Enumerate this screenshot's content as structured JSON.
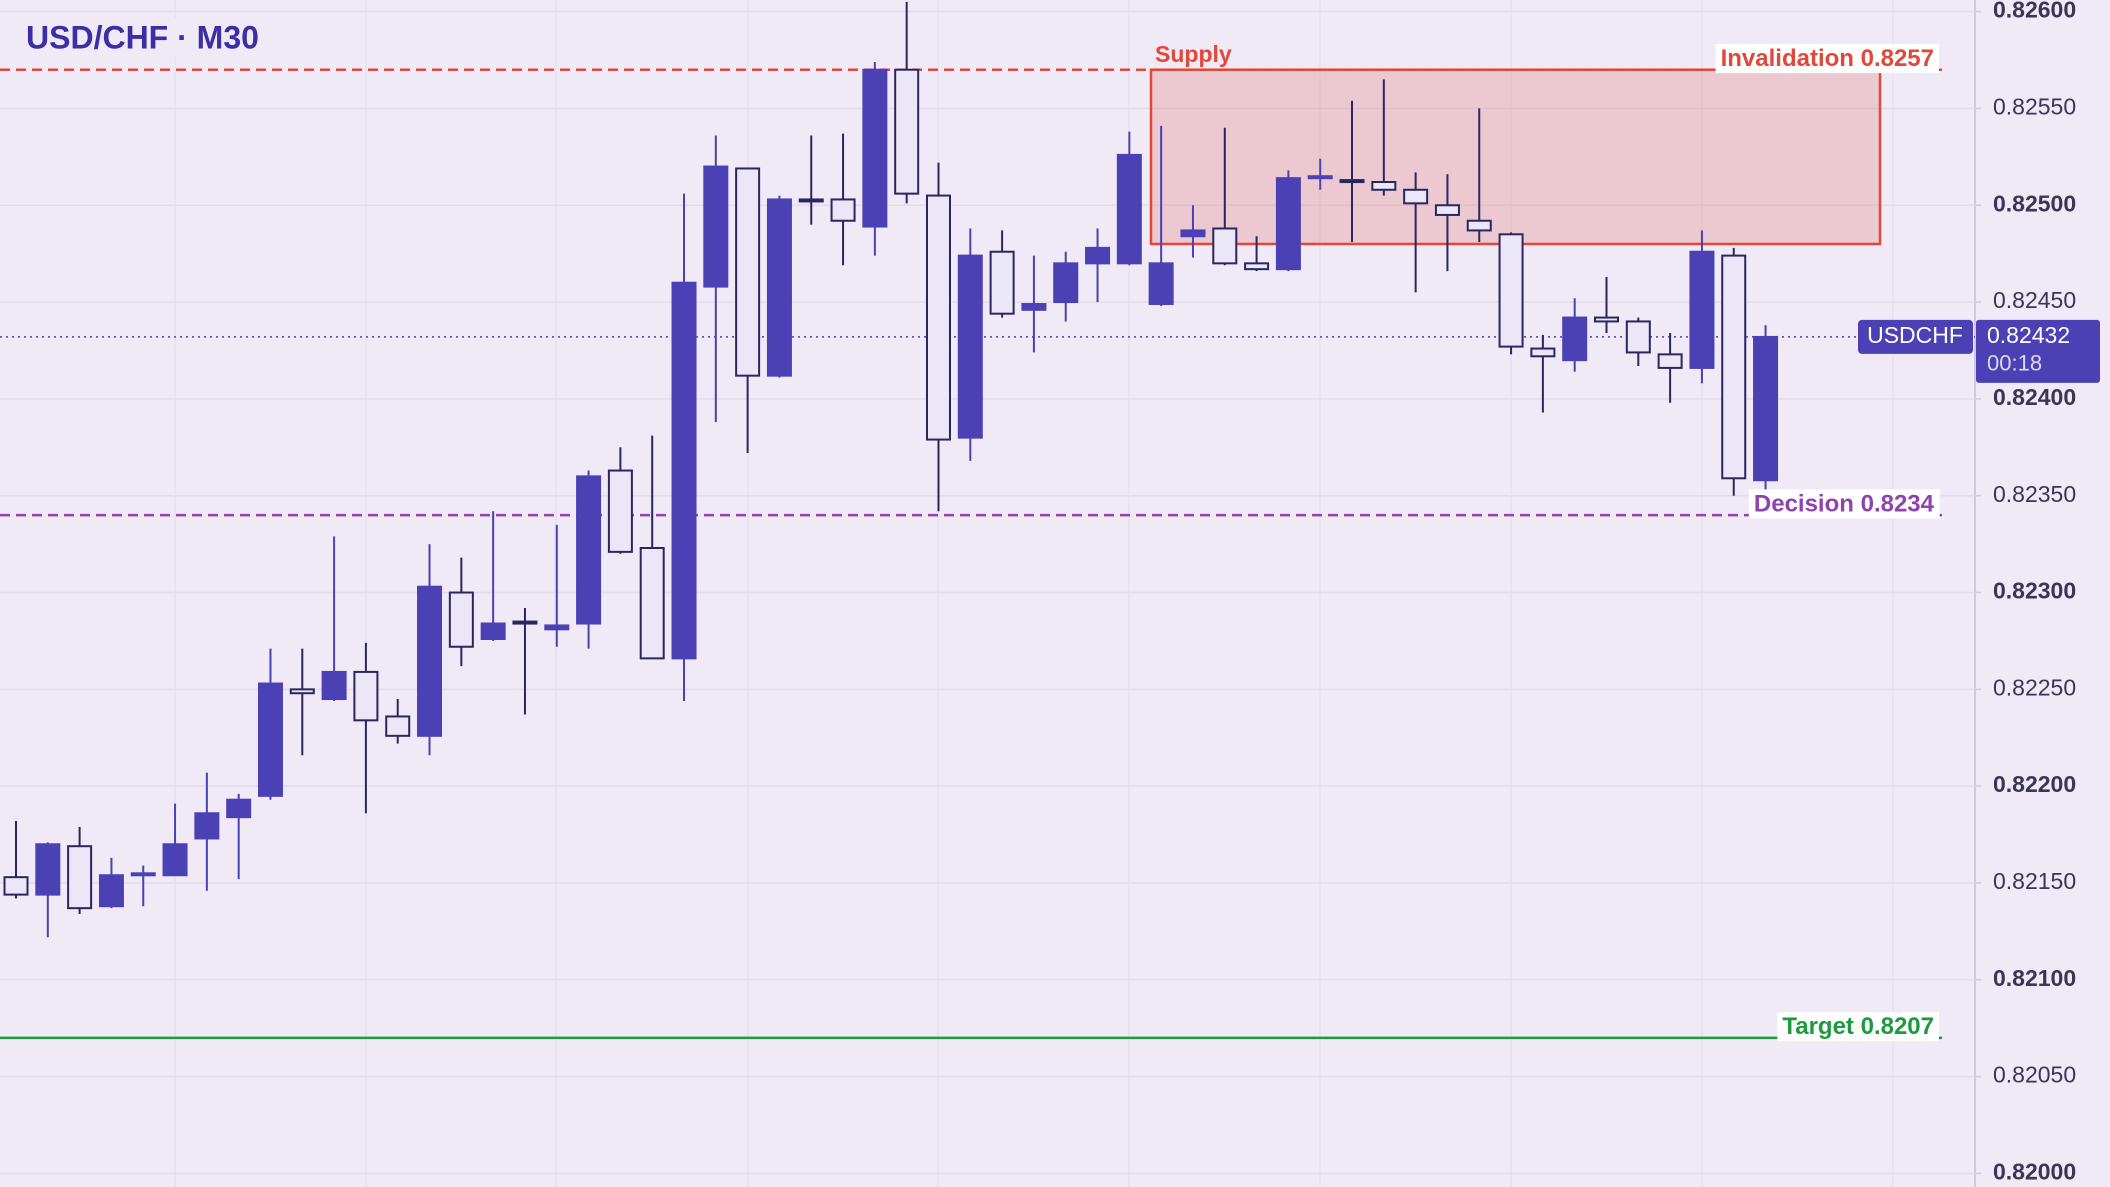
{
  "chart_data": {
    "type": "candlestick",
    "title": "USD/CHF · M30",
    "open": [
      0.82153,
      0.82144,
      0.82169,
      0.82138,
      0.82154,
      0.82154,
      0.82173,
      0.82184,
      0.82195,
      0.8225,
      0.82245,
      0.82259,
      0.82236,
      0.82226,
      0.823,
      0.82276,
      0.82285,
      0.82281,
      0.82284,
      0.82363,
      0.82323,
      0.82266,
      0.82458,
      0.82519,
      0.82412,
      0.82503,
      0.82503,
      0.82489,
      0.8257,
      0.82505,
      0.8238,
      0.82476,
      0.82446,
      0.8245,
      0.8247,
      0.8247,
      0.82449,
      0.82484,
      0.82488,
      0.8247,
      0.82467,
      0.82514,
      0.82513,
      0.82512,
      0.82508,
      0.825,
      0.82492,
      0.82485,
      0.82426,
      0.8242,
      0.82442,
      0.8244,
      0.82423,
      0.82416,
      0.82474,
      0.82358
    ],
    "high": [
      0.82182,
      0.82171,
      0.82179,
      0.82163,
      0.82159,
      0.82191,
      0.82207,
      0.82196,
      0.82271,
      0.82271,
      0.82329,
      0.82274,
      0.82245,
      0.82325,
      0.82318,
      0.82342,
      0.82292,
      0.82335,
      0.82363,
      0.82375,
      0.82381,
      0.82506,
      0.82536,
      0.82519,
      0.82505,
      0.82536,
      0.82537,
      0.82574,
      0.82605,
      0.82522,
      0.82488,
      0.82487,
      0.82474,
      0.82476,
      0.82488,
      0.82538,
      0.82541,
      0.825,
      0.8254,
      0.82484,
      0.82518,
      0.82524,
      0.82554,
      0.82565,
      0.82517,
      0.82516,
      0.8255,
      0.82486,
      0.82433,
      0.82452,
      0.82463,
      0.82442,
      0.82434,
      0.82487,
      0.82478,
      0.82438
    ],
    "low": [
      0.82142,
      0.82122,
      0.82134,
      0.82137,
      0.82138,
      0.82154,
      0.82146,
      0.82152,
      0.82193,
      0.82216,
      0.82244,
      0.82186,
      0.82222,
      0.82216,
      0.82262,
      0.82275,
      0.82237,
      0.82272,
      0.82271,
      0.8232,
      0.82266,
      0.82244,
      0.82388,
      0.82372,
      0.82411,
      0.8249,
      0.82469,
      0.82474,
      0.82501,
      0.82342,
      0.82368,
      0.82442,
      0.82424,
      0.8244,
      0.8245,
      0.82469,
      0.82448,
      0.82473,
      0.82469,
      0.82466,
      0.82466,
      0.82508,
      0.82481,
      0.82505,
      0.82455,
      0.82466,
      0.82481,
      0.82423,
      0.82393,
      0.82414,
      0.82434,
      0.82417,
      0.82398,
      0.82408,
      0.8235,
      0.82352
    ],
    "close": [
      0.82144,
      0.8217,
      0.82137,
      0.82154,
      0.82155,
      0.8217,
      0.82186,
      0.82193,
      0.82253,
      0.82248,
      0.82259,
      0.82234,
      0.82226,
      0.82303,
      0.82272,
      0.82284,
      0.82284,
      0.82283,
      0.8236,
      0.82321,
      0.82266,
      0.8246,
      0.8252,
      0.82412,
      0.82503,
      0.82502,
      0.82492,
      0.8257,
      0.82506,
      0.82379,
      0.82474,
      0.82444,
      0.82449,
      0.8247,
      0.82478,
      0.82526,
      0.8247,
      0.82487,
      0.8247,
      0.82467,
      0.82514,
      0.82515,
      0.82512,
      0.82508,
      0.82501,
      0.82495,
      0.82487,
      0.82427,
      0.82422,
      0.82442,
      0.8244,
      0.82424,
      0.82416,
      0.82476,
      0.82359,
      0.82432
    ],
    "colors": {
      "up": "#4b40b4",
      "down": "#ebe7f6",
      "outline": "#2b2560"
    },
    "ylim": [
      0.81993,
      0.82606
    ],
    "yticks": [
      {
        "value": 0.82,
        "label": "0.82000"
      },
      {
        "value": 0.8205,
        "label": "0.82050"
      },
      {
        "value": 0.821,
        "label": "0.82100"
      },
      {
        "value": 0.8215,
        "label": "0.82150"
      },
      {
        "value": 0.822,
        "label": "0.82200"
      },
      {
        "value": 0.8225,
        "label": "0.82250"
      },
      {
        "value": 0.823,
        "label": "0.82300"
      },
      {
        "value": 0.8235,
        "label": "0.82350"
      },
      {
        "value": 0.824,
        "label": "0.82400"
      },
      {
        "value": 0.8245,
        "label": "0.82450"
      },
      {
        "value": 0.825,
        "label": "0.82500"
      },
      {
        "value": 0.8255,
        "label": "0.82550"
      },
      {
        "value": 0.826,
        "label": "0.82600"
      }
    ],
    "grid": true,
    "levels": [
      {
        "label": "Invalidation 0.8257",
        "value": 0.8257,
        "color": "#e2483a",
        "style": "dashed"
      },
      {
        "label": "Decision 0.8234",
        "value": 0.8234,
        "color": "#8e44ad",
        "style": "dashed"
      },
      {
        "label": "Target 0.8207",
        "value": 0.8207,
        "color": "#1e9a3c",
        "style": "solid"
      }
    ],
    "zone": {
      "label": "Supply",
      "top": 0.8257,
      "bottom": 0.8248,
      "color": "#e2483a"
    },
    "current": {
      "symbol": "USDCHF",
      "price": 0.82432,
      "countdown": "00:18",
      "color": "#4b40b4"
    }
  }
}
